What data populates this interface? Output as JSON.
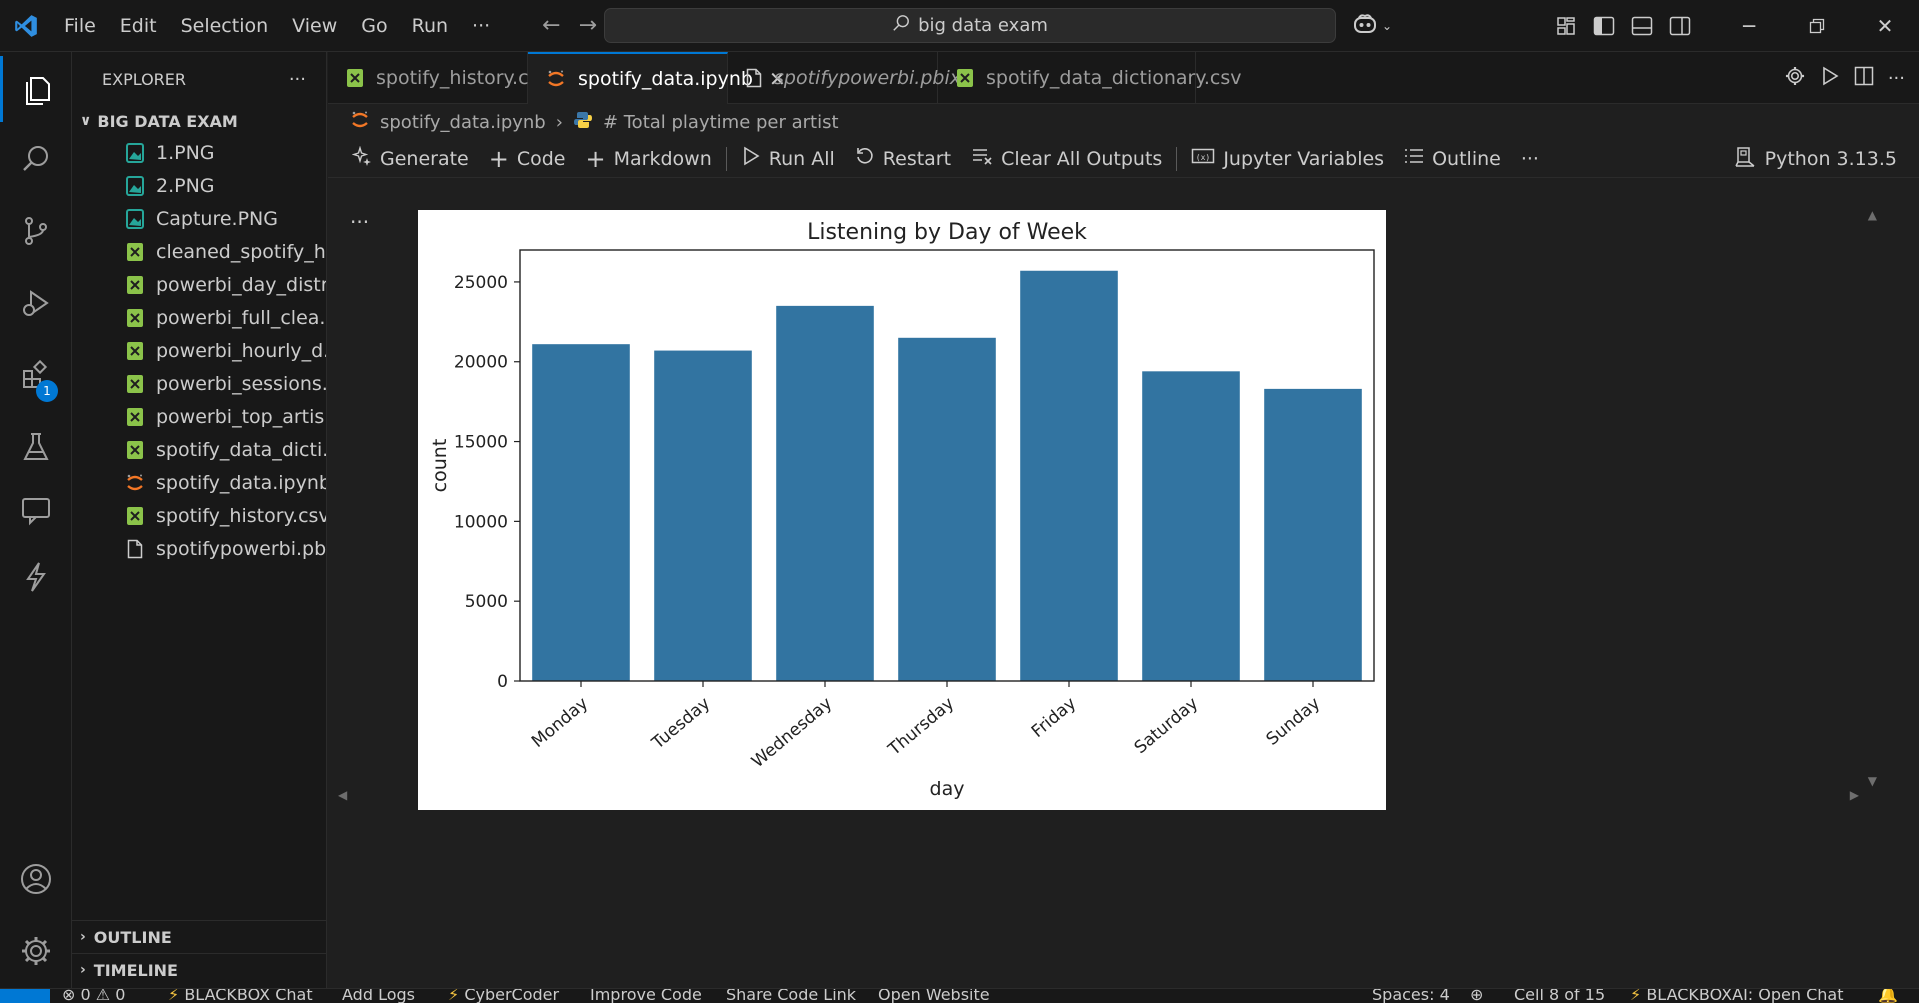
{
  "titlebar": {
    "menu": [
      "File",
      "Edit",
      "Selection",
      "View",
      "Go",
      "Run",
      "···"
    ],
    "search_text": "big data exam"
  },
  "sidebar": {
    "title": "EXPLORER",
    "more": "···",
    "folder": "BIG DATA EXAM",
    "files": [
      {
        "name": "1.PNG",
        "icon": "image-icon"
      },
      {
        "name": "2.PNG",
        "icon": "image-icon"
      },
      {
        "name": "Capture.PNG",
        "icon": "image-icon"
      },
      {
        "name": "cleaned_spotify_h...",
        "icon": "csv-icon"
      },
      {
        "name": "powerbi_day_distr...",
        "icon": "csv-icon"
      },
      {
        "name": "powerbi_full_clea...",
        "icon": "csv-icon"
      },
      {
        "name": "powerbi_hourly_d...",
        "icon": "csv-icon"
      },
      {
        "name": "powerbi_sessions....",
        "icon": "csv-icon"
      },
      {
        "name": "powerbi_top_artis...",
        "icon": "csv-icon"
      },
      {
        "name": "spotify_data_dicti...",
        "icon": "csv-icon"
      },
      {
        "name": "spotify_data.ipynb",
        "icon": "jupyter-icon"
      },
      {
        "name": "spotify_history.csv",
        "icon": "csv-icon"
      },
      {
        "name": "spotifypowerbi.pbix",
        "icon": "file-icon"
      }
    ],
    "outline": "OUTLINE",
    "timeline": "TIMELINE",
    "extensions_badge": "1"
  },
  "tabs": [
    {
      "label": "spotify_history.csv",
      "icon": "csv-icon",
      "active": false,
      "italic": false
    },
    {
      "label": "spotify_data.ipynb",
      "icon": "jupyter-icon",
      "active": true,
      "italic": false
    },
    {
      "label": "spotifypowerbi.pbix",
      "icon": "file-icon",
      "active": false,
      "italic": true
    },
    {
      "label": "spotify_data_dictionary.csv",
      "icon": "csv-icon",
      "active": false,
      "italic": false
    }
  ],
  "breadcrumb": {
    "file": "spotify_data.ipynb",
    "cell": "# Total playtime per artist"
  },
  "toolbar": {
    "generate": "Generate",
    "code": "Code",
    "markdown": "Markdown",
    "run_all": "Run All",
    "restart": "Restart",
    "clear_outputs": "Clear All Outputs",
    "jupyter_variables": "Jupyter Variables",
    "outline": "Outline",
    "more": "···",
    "kernel": "Python 3.13.5"
  },
  "cell": {
    "more": "···"
  },
  "chart_data": {
    "type": "bar",
    "title": "Listening by Day of Week",
    "xlabel": "day",
    "ylabel": "count",
    "categories": [
      "Monday",
      "Tuesday",
      "Wednesday",
      "Thursday",
      "Friday",
      "Saturday",
      "Sunday"
    ],
    "values": [
      21100,
      20700,
      23500,
      21500,
      25700,
      19400,
      18300
    ],
    "ylim": [
      0,
      27000
    ],
    "yticks": [
      0,
      5000,
      10000,
      15000,
      20000,
      25000
    ],
    "bar_color": "#3274a1",
    "grid": false,
    "legend": "none"
  },
  "statusbar": {
    "problems": "⊗ 0 ⚠ 0",
    "blackbox_chat": "BLACKBOX Chat",
    "add_logs": "Add Logs",
    "cybercoder": "CyberCoder",
    "improve_code": "Improve Code",
    "share_code_link": "Share Code Link",
    "open_website": "Open Website",
    "spaces": "Spaces: 4",
    "cell_position": "Cell 8 of 15",
    "blackboxai_open_chat": "BLACKBOXAI: Open Chat"
  }
}
